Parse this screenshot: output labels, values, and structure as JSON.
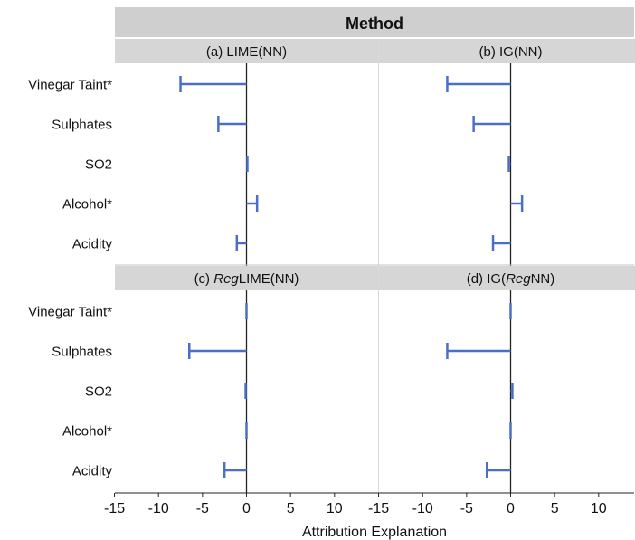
{
  "chart_data": {
    "type": "interval",
    "title": "Method",
    "xlabel": "Attribution Explanation",
    "xlim": [
      -15,
      14
    ],
    "xticks": [
      -15,
      -10,
      -5,
      0,
      5,
      10
    ],
    "categories": [
      "Vinegar Taint*",
      "Sulphates",
      "SO2",
      "Alcohol*",
      "Acidity"
    ],
    "panels": [
      {
        "prefix": "(a) ",
        "italic": "",
        "suffix": "LIME(NN)",
        "values": [
          -7.5,
          -3.2,
          0.1,
          1.2,
          -1.1
        ]
      },
      {
        "prefix": "(b) IG(",
        "italic": "",
        "suffix": "NN)",
        "values": [
          -7.2,
          -4.2,
          -0.2,
          1.3,
          -2.0
        ]
      },
      {
        "prefix": "(c) ",
        "italic": "Reg",
        "suffix": "LIME(NN)",
        "values": [
          0.0,
          -6.5,
          -0.1,
          0.0,
          -2.5
        ]
      },
      {
        "prefix": "(d) IG(",
        "italic": "Reg",
        "suffix": "NN)",
        "values": [
          0.0,
          -7.2,
          0.2,
          0.0,
          -2.7
        ]
      }
    ],
    "colors": {
      "bar": "#4a6fc7",
      "zero_line": "#222222",
      "header_bg": "#d6d6d6",
      "title_bg": "#cfcfcf"
    }
  }
}
